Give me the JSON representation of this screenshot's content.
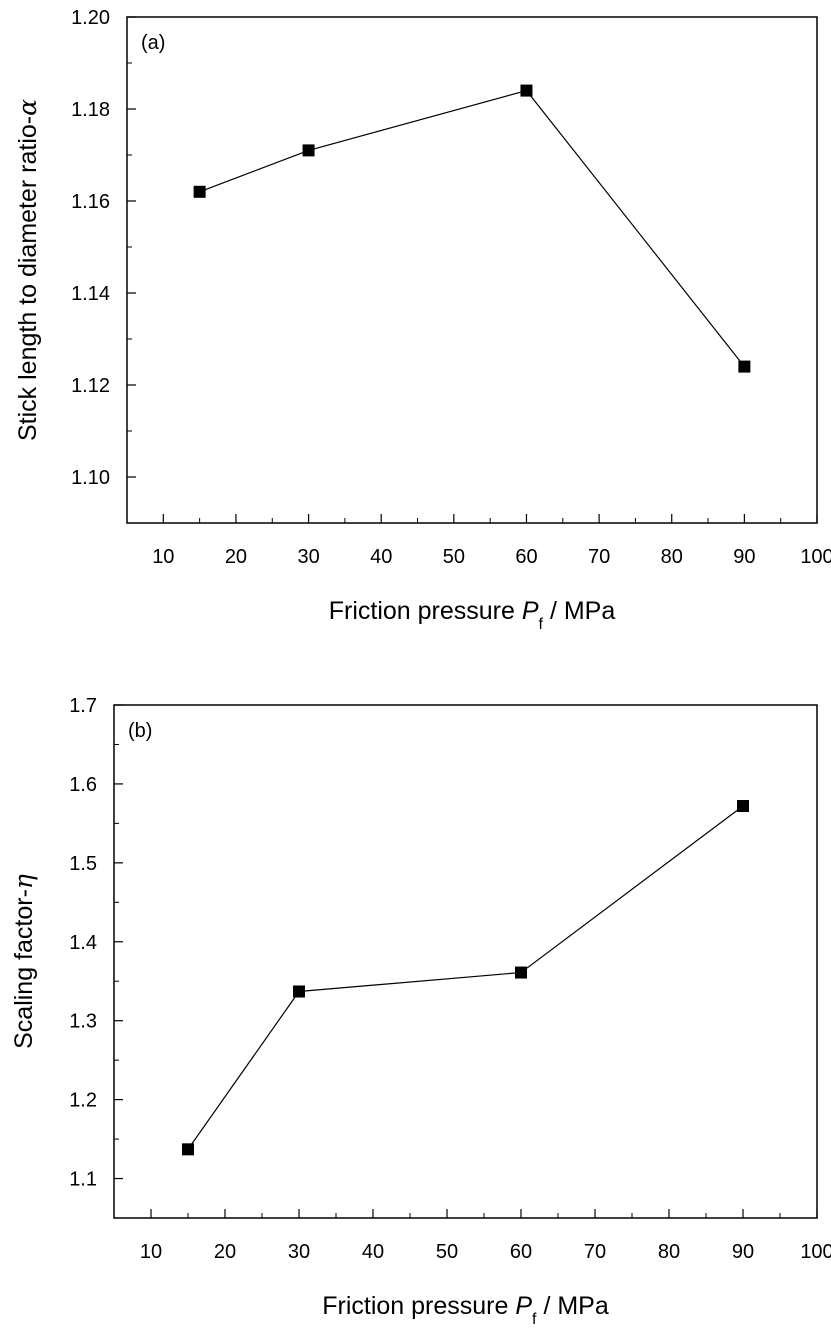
{
  "chart_data": [
    {
      "type": "line",
      "panel_label": "(a)",
      "x": [
        15,
        30,
        60,
        90
      ],
      "series": [
        {
          "values": [
            1.162,
            1.171,
            1.184,
            1.124
          ]
        }
      ],
      "xlabel": {
        "main": "Friction pressure ",
        "var": "P",
        "sub": "f",
        "unit": " / MPa"
      },
      "ylabel": {
        "main": "Stick length to diameter ratio-",
        "var": "α"
      },
      "xlim": [
        5,
        100
      ],
      "ylim": [
        1.09,
        1.2
      ],
      "xticks": [
        10,
        20,
        30,
        40,
        50,
        60,
        70,
        80,
        90,
        100
      ],
      "yticks": [
        1.1,
        1.12,
        1.14,
        1.16,
        1.18,
        1.2
      ],
      "ytick_labels": [
        "1.10",
        "1.12",
        "1.14",
        "1.16",
        "1.18",
        "1.20"
      ],
      "marker": "square",
      "color": "#000000",
      "grid": false,
      "legend": "none"
    },
    {
      "type": "line",
      "panel_label": "(b)",
      "x": [
        15,
        30,
        60,
        90
      ],
      "series": [
        {
          "values": [
            1.137,
            1.337,
            1.361,
            1.572
          ]
        }
      ],
      "xlabel": {
        "main": "Friction pressure ",
        "var": "P",
        "sub": "f",
        "unit": " / MPa"
      },
      "ylabel": {
        "main": "Scaling factor-",
        "var": "η"
      },
      "xlim": [
        5,
        100
      ],
      "ylim": [
        1.05,
        1.7
      ],
      "xticks": [
        10,
        20,
        30,
        40,
        50,
        60,
        70,
        80,
        90,
        100
      ],
      "yticks": [
        1.1,
        1.2,
        1.3,
        1.4,
        1.5,
        1.6,
        1.7
      ],
      "ytick_labels": [
        "1.1",
        "1.2",
        "1.3",
        "1.4",
        "1.5",
        "1.6",
        "1.7"
      ],
      "marker": "square",
      "color": "#000000",
      "grid": false,
      "legend": "none"
    }
  ]
}
